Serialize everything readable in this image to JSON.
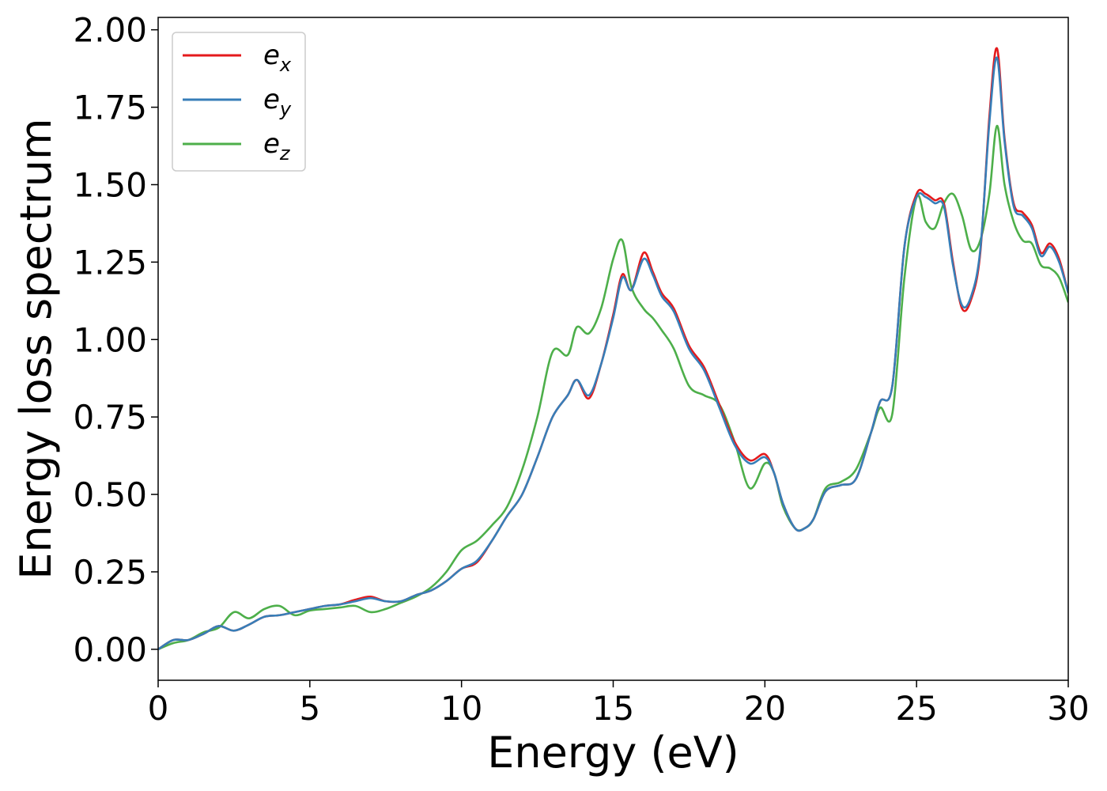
{
  "chart_data": {
    "type": "line",
    "title": "",
    "xlabel": "Energy (eV)",
    "ylabel": "Energy loss spectrum",
    "xlim": [
      0,
      30
    ],
    "ylim": [
      -0.1,
      2.04
    ],
    "xticks": [
      0,
      5,
      10,
      15,
      20,
      25,
      30
    ],
    "xtick_labels": [
      "0",
      "5",
      "10",
      "15",
      "20",
      "25",
      "30"
    ],
    "yticks": [
      0.0,
      0.25,
      0.5,
      0.75,
      1.0,
      1.25,
      1.5,
      1.75,
      2.0
    ],
    "ytick_labels": [
      "0.00",
      "0.25",
      "0.50",
      "0.75",
      "1.00",
      "1.25",
      "1.50",
      "1.75",
      "2.00"
    ],
    "grid": false,
    "legend_position": "top-left",
    "series": [
      {
        "name": "e",
        "subscript": "x",
        "color": "#e41a1c",
        "x": [
          0,
          0.5,
          1,
          1.5,
          2,
          2.5,
          3,
          3.5,
          4,
          4.5,
          5,
          5.5,
          6,
          6.5,
          7,
          7.5,
          8,
          8.5,
          9,
          9.5,
          10,
          10.5,
          11,
          11.5,
          12,
          12.5,
          13,
          13.5,
          13.8,
          14.2,
          14.6,
          15,
          15.3,
          15.6,
          16,
          16.3,
          16.6,
          17,
          17.5,
          18,
          18.5,
          19,
          19.5,
          20,
          20.3,
          20.6,
          21,
          21.3,
          21.6,
          22,
          22.5,
          23,
          23.5,
          23.8,
          24.2,
          24.6,
          25,
          25.3,
          25.6,
          25.9,
          26.2,
          26.5,
          26.8,
          27.1,
          27.4,
          27.65,
          27.9,
          28.2,
          28.5,
          28.8,
          29.1,
          29.4,
          29.7,
          30
        ],
        "values": [
          0.0,
          0.03,
          0.03,
          0.05,
          0.075,
          0.06,
          0.08,
          0.105,
          0.11,
          0.12,
          0.13,
          0.14,
          0.145,
          0.16,
          0.17,
          0.155,
          0.155,
          0.175,
          0.19,
          0.22,
          0.26,
          0.28,
          0.35,
          0.43,
          0.5,
          0.62,
          0.75,
          0.82,
          0.87,
          0.81,
          0.92,
          1.08,
          1.21,
          1.16,
          1.28,
          1.22,
          1.15,
          1.1,
          0.98,
          0.91,
          0.79,
          0.67,
          0.61,
          0.63,
          0.57,
          0.47,
          0.39,
          0.39,
          0.42,
          0.51,
          0.53,
          0.55,
          0.7,
          0.8,
          0.85,
          1.3,
          1.47,
          1.47,
          1.45,
          1.44,
          1.25,
          1.1,
          1.13,
          1.28,
          1.72,
          1.94,
          1.65,
          1.44,
          1.41,
          1.37,
          1.28,
          1.31,
          1.26,
          1.15
        ]
      },
      {
        "name": "e",
        "subscript": "y",
        "color": "#377eb8",
        "x": [
          0,
          0.5,
          1,
          1.5,
          2,
          2.5,
          3,
          3.5,
          4,
          4.5,
          5,
          5.5,
          6,
          6.5,
          7,
          7.5,
          8,
          8.5,
          9,
          9.5,
          10,
          10.5,
          11,
          11.5,
          12,
          12.5,
          13,
          13.5,
          13.8,
          14.2,
          14.6,
          15,
          15.3,
          15.6,
          16,
          16.3,
          16.6,
          17,
          17.5,
          18,
          18.5,
          19,
          19.5,
          20,
          20.3,
          20.6,
          21,
          21.3,
          21.6,
          22,
          22.5,
          23,
          23.5,
          23.8,
          24.2,
          24.6,
          25,
          25.3,
          25.6,
          25.9,
          26.2,
          26.5,
          26.8,
          27.1,
          27.4,
          27.65,
          27.9,
          28.2,
          28.5,
          28.8,
          29.1,
          29.4,
          29.7,
          30
        ],
        "values": [
          0.0,
          0.03,
          0.03,
          0.05,
          0.075,
          0.06,
          0.08,
          0.105,
          0.11,
          0.12,
          0.13,
          0.14,
          0.145,
          0.155,
          0.165,
          0.155,
          0.155,
          0.175,
          0.19,
          0.22,
          0.26,
          0.285,
          0.35,
          0.43,
          0.5,
          0.62,
          0.75,
          0.82,
          0.87,
          0.82,
          0.92,
          1.07,
          1.2,
          1.16,
          1.26,
          1.21,
          1.14,
          1.09,
          0.97,
          0.9,
          0.78,
          0.66,
          0.6,
          0.62,
          0.57,
          0.47,
          0.39,
          0.39,
          0.42,
          0.51,
          0.53,
          0.55,
          0.7,
          0.8,
          0.85,
          1.3,
          1.46,
          1.46,
          1.44,
          1.43,
          1.24,
          1.11,
          1.14,
          1.29,
          1.7,
          1.91,
          1.64,
          1.43,
          1.4,
          1.36,
          1.27,
          1.3,
          1.25,
          1.15
        ]
      },
      {
        "name": "e",
        "subscript": "z",
        "color": "#4daf4a",
        "x": [
          0,
          0.5,
          1,
          1.5,
          2,
          2.5,
          3,
          3.5,
          4,
          4.5,
          5,
          5.5,
          6,
          6.5,
          7,
          7.5,
          8,
          8.5,
          9,
          9.5,
          10,
          10.5,
          11,
          11.5,
          12,
          12.5,
          13,
          13.5,
          13.8,
          14.2,
          14.6,
          15,
          15.3,
          15.6,
          16,
          16.3,
          16.6,
          17,
          17.5,
          18,
          18.5,
          19,
          19.5,
          20,
          20.3,
          20.6,
          21,
          21.3,
          21.6,
          22,
          22.5,
          23,
          23.5,
          23.8,
          24.2,
          24.6,
          25,
          25.3,
          25.6,
          25.9,
          26.2,
          26.5,
          26.8,
          27.1,
          27.4,
          27.65,
          27.9,
          28.2,
          28.5,
          28.8,
          29.1,
          29.4,
          29.7,
          30
        ],
        "values": [
          0.0,
          0.02,
          0.03,
          0.055,
          0.07,
          0.12,
          0.1,
          0.13,
          0.14,
          0.11,
          0.125,
          0.13,
          0.135,
          0.14,
          0.12,
          0.13,
          0.15,
          0.17,
          0.2,
          0.25,
          0.32,
          0.35,
          0.4,
          0.46,
          0.58,
          0.75,
          0.96,
          0.95,
          1.04,
          1.02,
          1.1,
          1.26,
          1.32,
          1.17,
          1.1,
          1.07,
          1.03,
          0.97,
          0.85,
          0.82,
          0.79,
          0.67,
          0.52,
          0.6,
          0.57,
          0.46,
          0.39,
          0.39,
          0.42,
          0.52,
          0.54,
          0.58,
          0.7,
          0.78,
          0.76,
          1.2,
          1.46,
          1.38,
          1.36,
          1.44,
          1.47,
          1.4,
          1.29,
          1.32,
          1.47,
          1.69,
          1.5,
          1.38,
          1.32,
          1.31,
          1.24,
          1.23,
          1.2,
          1.12
        ]
      }
    ]
  }
}
